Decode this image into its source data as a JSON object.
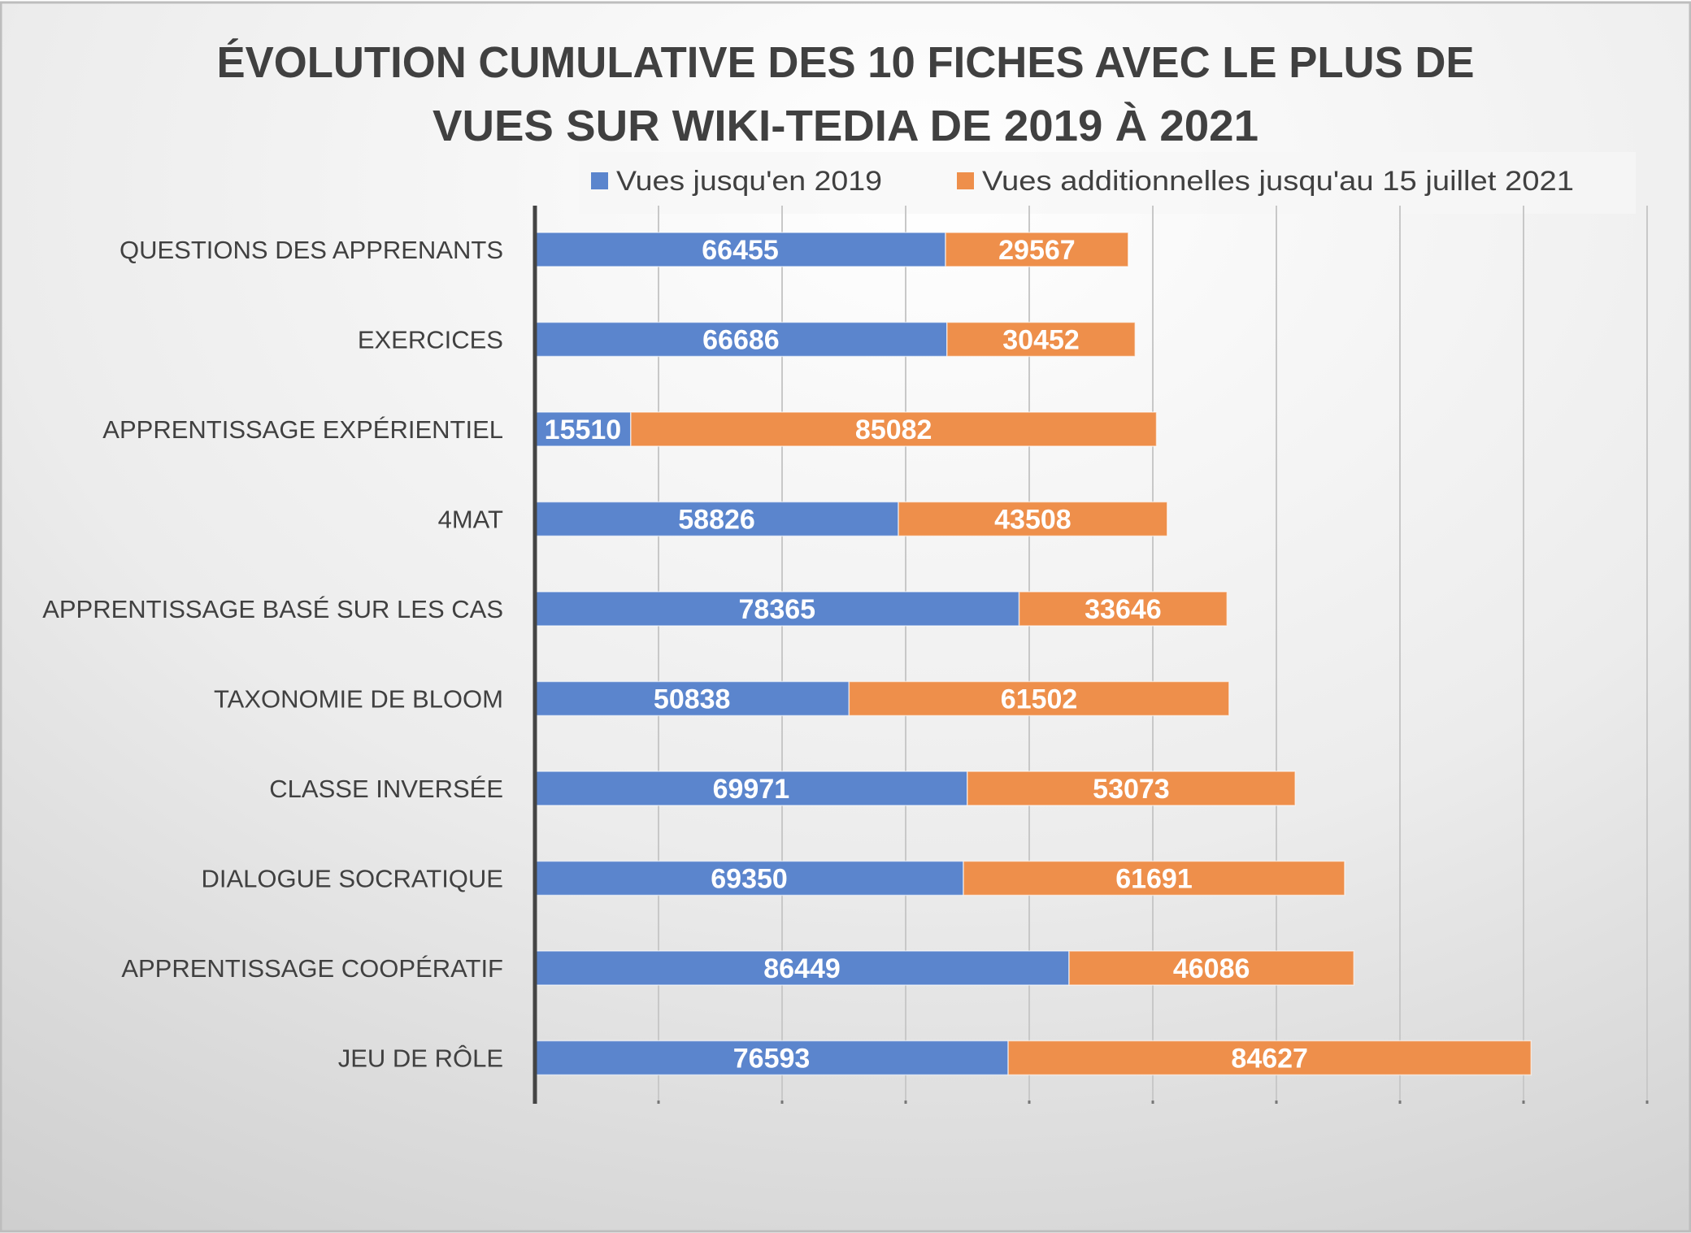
{
  "chart_data": {
    "type": "bar",
    "orientation": "horizontal",
    "stacked": true,
    "title": [
      "ÉVOLUTION CUMULATIVE DES 10 FICHES  AVEC LE PLUS DE",
      "VUES SUR WIKI-TEDIA DE 2019 À 2021"
    ],
    "categories": [
      "QUESTIONS DES APPRENANTS",
      "EXERCICES",
      "APPRENTISSAGE EXPÉRIENTIEL",
      "4MAT",
      "APPRENTISSAGE BASÉ SUR LES CAS",
      "TAXONOMIE DE BLOOM",
      "CLASSE INVERSÉE",
      "DIALOGUE SOCRATIQUE",
      "APPRENTISSAGE COOPÉRATIF",
      "JEU DE RÔLE"
    ],
    "series": [
      {
        "name": "Vues jusqu'en 2019",
        "color": "#5b85cd",
        "values": [
          66455,
          66686,
          15510,
          58826,
          78365,
          50838,
          69971,
          69350,
          86449,
          76593
        ]
      },
      {
        "name": "Vues additionnelles jusqu'au 15 juillet 2021",
        "color": "#ee8f4b",
        "values": [
          29567,
          30452,
          85082,
          43508,
          33646,
          61502,
          53073,
          61691,
          46086,
          84627
        ]
      }
    ],
    "xlim": [
      0,
      180000
    ],
    "x_grid_step": 20000,
    "grid": true,
    "x_tick_labels_shown": false,
    "legend_position": "top"
  }
}
